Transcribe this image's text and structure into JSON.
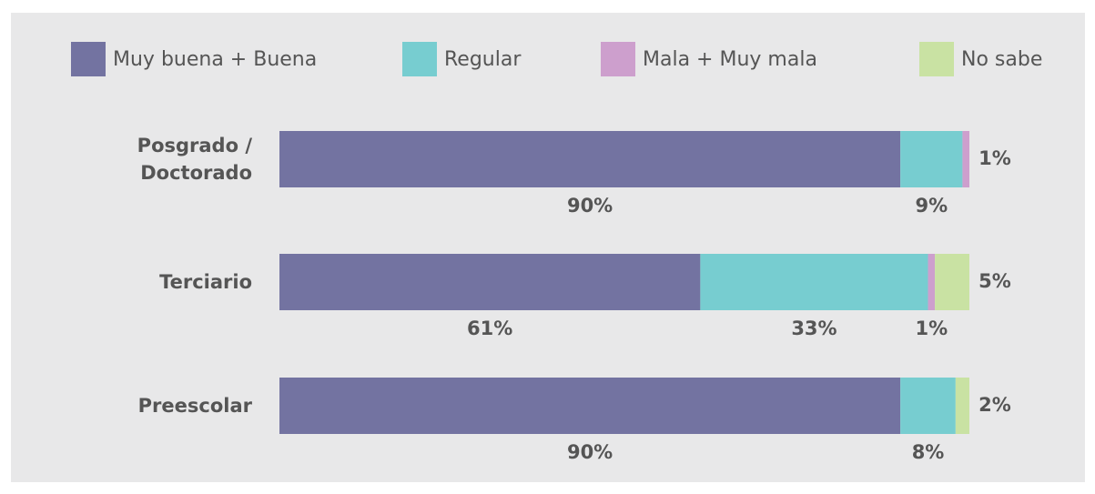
{
  "chart_data": {
    "type": "stacked-barh",
    "categories": [
      "Posgrado / Doctorado",
      "Terciario",
      "Preescolar"
    ],
    "xlim": [
      0,
      100
    ],
    "legend": "top",
    "series": [
      {
        "name": "Muy buena + Buena",
        "color": "#7373a1",
        "values": [
          90,
          61,
          90
        ],
        "value_labels": [
          "90%",
          "61%",
          "90%"
        ]
      },
      {
        "name": "Regular",
        "color": "#77cdd0",
        "values": [
          9,
          33,
          8
        ],
        "value_labels": [
          "9%",
          "33%",
          "8%"
        ]
      },
      {
        "name": "Mala + Muy mala",
        "color": "#cd9fcd",
        "values": [
          1,
          1,
          0
        ],
        "value_labels": [
          "1%",
          "1%",
          null
        ]
      },
      {
        "name": "No sabe",
        "color": "#c9e2a3",
        "values": [
          0,
          5,
          2
        ],
        "value_labels": [
          null,
          "5%",
          "2%"
        ]
      }
    ]
  }
}
